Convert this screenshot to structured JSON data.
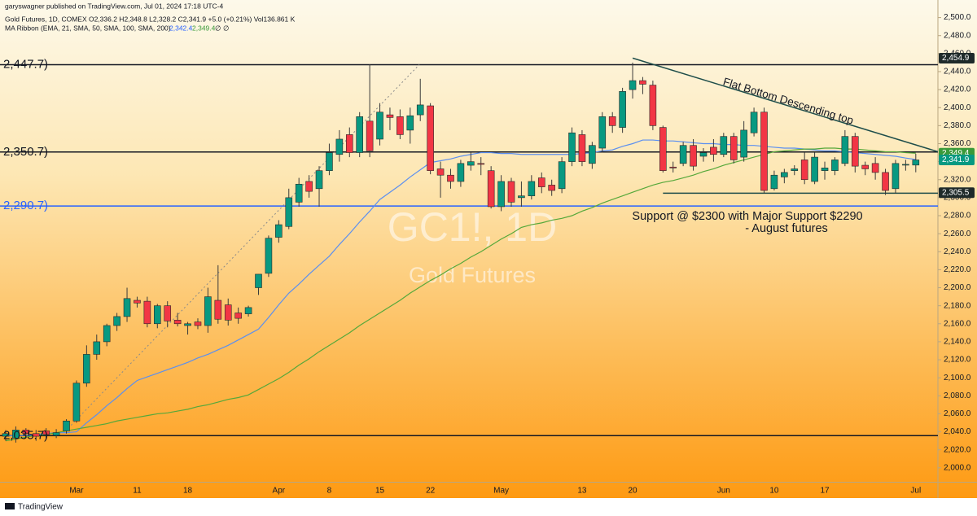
{
  "header": {
    "published": "garyswagner published on TradingView.com, Jul 01, 2024 17:18 UTC-4",
    "symbol_line": "Gold Futures, 1D, COMEX  O2,336.2  H2,348.8  L2,328.2  C2,341.9  +5.0 (+0.21%)  Vol136.861 K",
    "ma_line": "MA Ribbon (EMA, 21, SMA, 50, SMA, 100, SMA, 200)",
    "ma_value_1": "2,342.4",
    "ma_value_2": "2,349.4",
    "ma_value_3": "∅",
    "ma_value_4": "∅"
  },
  "chart_data": {
    "type": "candlestick",
    "watermark_title": "GC1!, 1D",
    "watermark_subtitle": "Gold Futures",
    "categories": [
      null,
      null,
      null,
      null,
      null,
      null,
      null,
      "Mar",
      null,
      null,
      null,
      null,
      null,
      "11",
      null,
      null,
      null,
      null,
      "18",
      null,
      null,
      null,
      null,
      null,
      null,
      null,
      null,
      "Apr",
      null,
      null,
      null,
      null,
      "8",
      null,
      null,
      null,
      null,
      "15",
      null,
      null,
      null,
      null,
      "22",
      null,
      null,
      null,
      null,
      null,
      null,
      "May",
      null,
      null,
      null,
      null,
      null,
      null,
      null,
      "13",
      null,
      null,
      null,
      null,
      "20",
      null,
      null,
      null,
      null,
      null,
      null,
      null,
      null,
      "Jun",
      null,
      null,
      null,
      null,
      "10",
      null,
      null,
      null,
      null,
      "17",
      null,
      null,
      null,
      null,
      null,
      null,
      null,
      null,
      "Jul"
    ],
    "open": [
      2035,
      2033,
      2042,
      2038,
      2041,
      2036,
      2041,
      2052,
      2094,
      2126,
      2140,
      2158,
      2168,
      2186,
      2185,
      2160,
      2180,
      2164,
      2158,
      2162,
      2158,
      2186,
      2181,
      2172,
      2171,
      2200,
      2216,
      2256,
      2268,
      2295,
      2318,
      2310,
      2330,
      2348,
      2370,
      2350,
      2385,
      2365,
      2392,
      2390,
      2375,
      2392,
      2402,
      2332,
      2325,
      2318,
      2336,
      2338,
      2330,
      2290,
      2318,
      2300,
      2302,
      2322,
      2314,
      2310,
      2340,
      2370,
      2338,
      2355,
      2390,
      2378,
      2420,
      2430,
      2425,
      2378,
      2334,
      2338,
      2358,
      2346,
      2356,
      2348,
      2368,
      2345,
      2372,
      2395,
      2310,
      2323,
      2330,
      2342,
      2318,
      2330,
      2330,
      2338,
      2368,
      2336,
      2338,
      2328,
      2310,
      2337,
      2336.2
    ],
    "high": [
      2042,
      2046,
      2044,
      2042,
      2044,
      2043,
      2054,
      2097,
      2136,
      2148,
      2160,
      2172,
      2200,
      2190,
      2190,
      2182,
      2185,
      2172,
      2162,
      2166,
      2200,
      2225,
      2188,
      2178,
      2180,
      2215,
      2258,
      2275,
      2310,
      2322,
      2325,
      2335,
      2360,
      2375,
      2378,
      2395,
      2448,
      2405,
      2400,
      2398,
      2400,
      2432,
      2405,
      2340,
      2332,
      2342,
      2350,
      2345,
      2335,
      2325,
      2322,
      2318,
      2325,
      2328,
      2320,
      2345,
      2378,
      2375,
      2362,
      2395,
      2395,
      2422,
      2450,
      2434,
      2430,
      2380,
      2340,
      2362,
      2365,
      2355,
      2365,
      2372,
      2372,
      2385,
      2400,
      2400,
      2330,
      2332,
      2336,
      2350,
      2350,
      2340,
      2345,
      2375,
      2372,
      2340,
      2345,
      2332,
      2342,
      2342,
      2348.8
    ],
    "low": [
      2030,
      2028,
      2033,
      2030,
      2032,
      2033,
      2038,
      2050,
      2090,
      2120,
      2135,
      2152,
      2162,
      2178,
      2156,
      2155,
      2156,
      2157,
      2148,
      2154,
      2150,
      2160,
      2158,
      2160,
      2168,
      2192,
      2212,
      2250,
      2265,
      2290,
      2300,
      2290,
      2325,
      2340,
      2345,
      2345,
      2345,
      2358,
      2375,
      2365,
      2360,
      2385,
      2326,
      2300,
      2310,
      2312,
      2330,
      2325,
      2288,
      2285,
      2290,
      2290,
      2298,
      2305,
      2302,
      2305,
      2335,
      2335,
      2332,
      2350,
      2372,
      2372,
      2410,
      2415,
      2375,
      2328,
      2328,
      2335,
      2330,
      2340,
      2340,
      2345,
      2338,
      2340,
      2368,
      2305,
      2308,
      2316,
      2325,
      2315,
      2315,
      2320,
      2325,
      2335,
      2328,
      2325,
      2320,
      2303,
      2305,
      2330,
      2328.2
    ],
    "close": [
      2038,
      2042,
      2038,
      2035,
      2037,
      2039,
      2052,
      2094,
      2126,
      2140,
      2158,
      2168,
      2188,
      2183,
      2160,
      2180,
      2163,
      2160,
      2160,
      2158,
      2190,
      2165,
      2164,
      2166,
      2178,
      2215,
      2255,
      2270,
      2300,
      2315,
      2307,
      2330,
      2350,
      2365,
      2350,
      2390,
      2352,
      2395,
      2389,
      2370,
      2391,
      2403,
      2330,
      2325,
      2318,
      2338,
      2340,
      2337,
      2290,
      2318,
      2295,
      2302,
      2318,
      2312,
      2308,
      2340,
      2372,
      2340,
      2358,
      2390,
      2380,
      2418,
      2430,
      2426,
      2380,
      2330,
      2333,
      2358,
      2335,
      2350,
      2348,
      2368,
      2342,
      2375,
      2395,
      2308,
      2325,
      2328,
      2332,
      2320,
      2345,
      2333,
      2342,
      2368,
      2335,
      2332,
      2328,
      2308,
      2338,
      2337,
      2341.9
    ],
    "up_color": "#089981",
    "down_color": "#f23645",
    "series": [
      {
        "color": "#5b8ff0",
        "values": [
          2035,
          2036,
          2036,
          2037,
          2038,
          2039,
          2039,
          2040,
          2050,
          2059,
          2069,
          2078,
          2088,
          2097,
          2101,
          2105,
          2109,
          2113,
          2117,
          2122,
          2126,
          2131,
          2136,
          2142,
          2148,
          2154,
          2167,
          2181,
          2194,
          2204,
          2215,
          2225,
          2235,
          2248,
          2260,
          2273,
          2285,
          2298,
          2306,
          2314,
          2323,
          2331,
          2339,
          2341,
          2343,
          2346,
          2348,
          2350,
          2350,
          2349,
          2349,
          2348,
          2348,
          2348,
          2348,
          2348,
          2348,
          2349,
          2350,
          2352,
          2353,
          2357,
          2360,
          2364,
          2364,
          2363,
          2363,
          2362,
          2361,
          2360,
          2360,
          2359,
          2359,
          2358,
          2358,
          2357,
          2356,
          2355,
          2355,
          2354,
          2353,
          2352,
          2352,
          2351,
          2350,
          2349,
          2348,
          2347,
          2346,
          2344,
          2342.4
        ]
      },
      {
        "color": "#56a83a",
        "values": [
          2030,
          2032,
          2034,
          2036,
          2037,
          2039,
          2041,
          2043,
          2045,
          2047,
          2049,
          2052,
          2054,
          2056,
          2058,
          2060,
          2061,
          2063,
          2065,
          2068,
          2070,
          2073,
          2076,
          2078,
          2081,
          2087,
          2093,
          2099,
          2106,
          2114,
          2121,
          2129,
          2136,
          2143,
          2150,
          2158,
          2165,
          2172,
          2179,
          2186,
          2194,
          2201,
          2208,
          2214,
          2221,
          2227,
          2234,
          2240,
          2247,
          2254,
          2260,
          2267,
          2270,
          2272,
          2275,
          2277,
          2280,
          2285,
          2289,
          2294,
          2298,
          2302,
          2306,
          2310,
          2314,
          2317,
          2319,
          2322,
          2325,
          2329,
          2332,
          2336,
          2339,
          2342,
          2345,
          2348,
          2351,
          2352,
          2353,
          2354,
          2354,
          2355,
          2355,
          2354,
          2354,
          2353,
          2352,
          2351,
          2351,
          2350,
          2349.4
        ]
      }
    ],
    "ylim": [
      1984,
      2515
    ],
    "yticks": [
      {
        "value": 2000,
        "label": "2,000.0"
      },
      {
        "value": 2020,
        "label": "2,020.0"
      },
      {
        "value": 2040,
        "label": "2,040.0"
      },
      {
        "value": 2060,
        "label": "2,060.0"
      },
      {
        "value": 2080,
        "label": "2,080.0"
      },
      {
        "value": 2100,
        "label": "2,100.0"
      },
      {
        "value": 2120,
        "label": "2,120.0"
      },
      {
        "value": 2140,
        "label": "2,140.0"
      },
      {
        "value": 2160,
        "label": "2,160.0"
      },
      {
        "value": 2180,
        "label": "2,180.0"
      },
      {
        "value": 2200,
        "label": "2,200.0"
      },
      {
        "value": 2220,
        "label": "2,220.0"
      },
      {
        "value": 2240,
        "label": "2,240.0"
      },
      {
        "value": 2260,
        "label": "2,260.0"
      },
      {
        "value": 2280,
        "label": "2,280.0"
      },
      {
        "value": 2300,
        "label": "2,300.0"
      },
      {
        "value": 2320,
        "label": "2,320.0"
      },
      {
        "value": 2340,
        "label": "2,340.0"
      },
      {
        "value": 2360,
        "label": "2,360.0"
      },
      {
        "value": 2380,
        "label": "2,380.0"
      },
      {
        "value": 2400,
        "label": "2,400.0"
      },
      {
        "value": 2420,
        "label": "2,420.0"
      },
      {
        "value": 2440,
        "label": "2,440.0"
      },
      {
        "value": 2460,
        "label": "2,460.0"
      },
      {
        "value": 2480,
        "label": "2,480.0"
      },
      {
        "value": 2500,
        "label": "2,500.0"
      }
    ],
    "grid": false,
    "hlines": [
      {
        "value": 2447.7,
        "label": "2,447.7)",
        "color": "#131722"
      },
      {
        "value": 2350.7,
        "label": "2,350.7)",
        "color": "#131722"
      },
      {
        "value": 2290.7,
        "label": "2,290.7)",
        "color": "#2962ff"
      },
      {
        "value": 2035.7,
        "label": "2,035.7)",
        "color": "#131722"
      }
    ],
    "trendlines": [
      {
        "x": [
          62,
          92.5
        ],
        "y": [
          2455,
          2350
        ],
        "color": "#1e4d4a",
        "style": "solid"
      },
      {
        "x": [
          65,
          92.5
        ],
        "y": [
          2305,
          2305
        ],
        "color": "#1e4d4a",
        "style": "solid"
      },
      {
        "x": [
          5.9,
          40.9
        ],
        "y": [
          2040.7,
          2447.7
        ],
        "color": "#8a8a8a",
        "style": "dotted"
      }
    ],
    "price_badges": [
      {
        "value": 2454.9,
        "label": "2,454.9",
        "color": "#1e2a2a"
      },
      {
        "value": 2349.4,
        "label": "2,349.4",
        "color": "#3a9a3a"
      },
      {
        "value": 2341.9,
        "label": "2,341.9",
        "color": "#089981"
      },
      {
        "value": 2305.5,
        "label": "2,305.5",
        "color": "#1e2a2a"
      }
    ],
    "annotations": [
      "Flat Bottom Descending top",
      "Support @ $2300 with Major Support $2290",
      "- August futures"
    ]
  },
  "footer": "TradingView"
}
